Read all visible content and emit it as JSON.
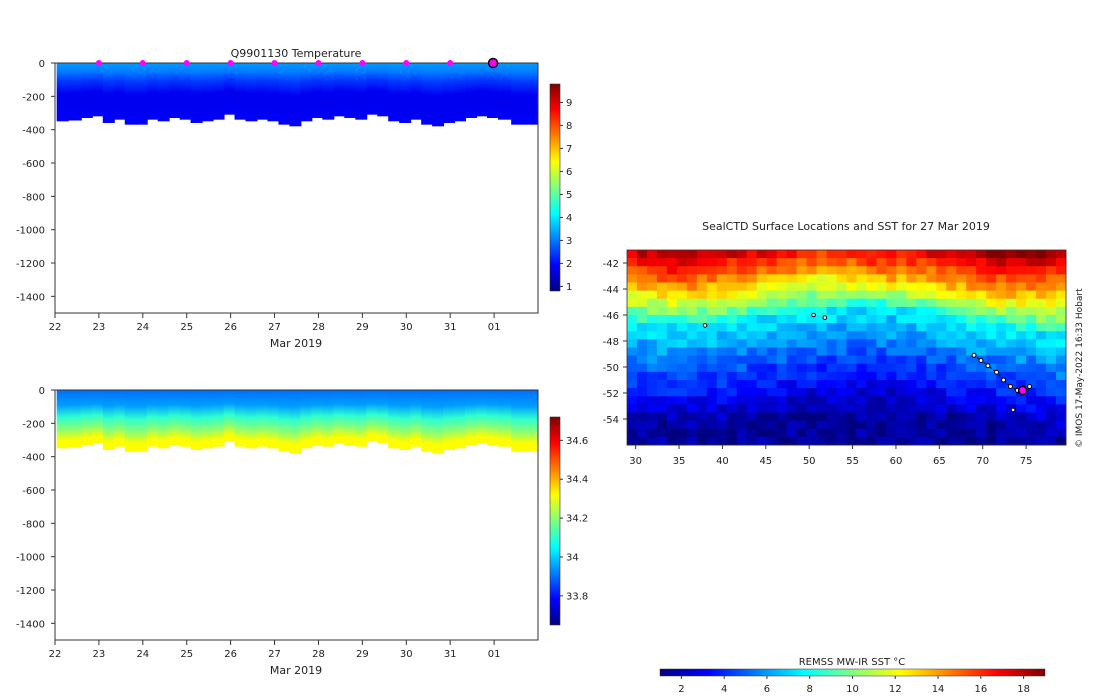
{
  "colors": {
    "jet": [
      "#00007f",
      "#0000ff",
      "#007fff",
      "#00ffff",
      "#7fff7f",
      "#ffff00",
      "#ff7f00",
      "#ff0000",
      "#7f0000"
    ],
    "profile_stops": [
      "#0a1f8f",
      "#1540c8",
      "#1e6fe0",
      "#23b2e8",
      "#17d0c0",
      "#2ec84e",
      "#8fdc1a",
      "#e0d020"
    ],
    "marker": "#ff00ff",
    "track": "#000000"
  },
  "chart_data": [
    {
      "id": "temperature",
      "type": "heatmap",
      "title": "Q9901130  Temperature",
      "xlabel": "Mar 2019",
      "ylabel": "",
      "x_ticks": [
        "22",
        "23",
        "24",
        "25",
        "26",
        "27",
        "28",
        "29",
        "30",
        "31",
        "01"
      ],
      "x_range": [
        22,
        33
      ],
      "y_ticks": [
        "0",
        "-200",
        "-400",
        "-600",
        "-800",
        "-1000",
        "-1200",
        "-1400"
      ],
      "y_range": [
        -1500,
        0
      ],
      "colorbar": {
        "ticks": [
          "1",
          "2",
          "3",
          "4",
          "5",
          "6",
          "7",
          "8",
          "9"
        ],
        "range": [
          0.8,
          9.8
        ]
      },
      "surface_markers_day": [
        23,
        24,
        25,
        26,
        27,
        28,
        29,
        30,
        31
      ],
      "last_marker_day": 32,
      "profile_days": [
        22.05,
        22.3,
        22.6,
        22.85,
        23.1,
        23.35,
        23.6,
        23.85,
        24.1,
        24.35,
        24.6,
        24.85,
        25.1,
        25.35,
        25.6,
        25.85,
        26.1,
        26.35,
        26.6,
        26.85,
        27.1,
        27.35,
        27.6,
        27.85,
        28.1,
        28.35,
        28.6,
        28.85,
        29.1,
        29.35,
        29.6,
        29.85,
        30.1,
        30.35,
        30.6,
        30.85,
        31.1,
        31.35,
        31.6,
        31.85,
        32.1,
        32.4
      ],
      "profile_depth_m": [
        350,
        345,
        330,
        320,
        360,
        340,
        370,
        370,
        340,
        350,
        330,
        340,
        360,
        350,
        340,
        310,
        340,
        350,
        340,
        350,
        370,
        380,
        350,
        330,
        340,
        320,
        330,
        340,
        310,
        320,
        350,
        360,
        340,
        370,
        380,
        360,
        350,
        330,
        320,
        330,
        340,
        370
      ],
      "water_column_values": [
        {
          "depth": 0,
          "value": 3.3
        },
        {
          "depth": -60,
          "value": 3.0
        },
        {
          "depth": -120,
          "value": 2.4
        },
        {
          "depth": -200,
          "value": 1.8
        },
        {
          "depth": -300,
          "value": 1.8
        },
        {
          "depth": -380,
          "value": 1.9
        }
      ]
    },
    {
      "id": "salinity",
      "type": "heatmap",
      "title": "",
      "xlabel": "Mar 2019",
      "ylabel": "",
      "x_ticks": [
        "22",
        "23",
        "24",
        "25",
        "26",
        "27",
        "28",
        "29",
        "30",
        "31",
        "01"
      ],
      "x_range": [
        22,
        33
      ],
      "y_ticks": [
        "0",
        "-200",
        "-400",
        "-600",
        "-800",
        "-1000",
        "-1200",
        "-1400"
      ],
      "y_range": [
        -1500,
        0
      ],
      "colorbar": {
        "ticks": [
          "33.8",
          "34",
          "34.2",
          "34.4",
          "34.6"
        ],
        "range": [
          33.65,
          34.72
        ]
      },
      "water_column_values": [
        {
          "depth": 0,
          "value": 33.9
        },
        {
          "depth": -100,
          "value": 33.95
        },
        {
          "depth": -180,
          "value": 34.1
        },
        {
          "depth": -260,
          "value": 34.2
        },
        {
          "depth": -330,
          "value": 34.32
        }
      ]
    },
    {
      "id": "sst_map",
      "type": "heatmap",
      "title": "SealCTD Surface Locations and SST for 27 Mar 2019",
      "xlabel": "",
      "ylabel": "",
      "x_ticks": [
        "30",
        "35",
        "40",
        "45",
        "50",
        "55",
        "60",
        "65",
        "70",
        "75"
      ],
      "x_range": [
        29,
        79.6
      ],
      "y_ticks": [
        "-42",
        "-44",
        "-46",
        "-48",
        "-50",
        "-52",
        "-54"
      ],
      "y_range": [
        -56,
        -41
      ],
      "sst_front_lat": [
        -46.5,
        -46.8,
        -46.6,
        -45.8,
        -45.6,
        -45.2,
        -45.7,
        -46.5,
        -47.0,
        -47.6
      ],
      "sst_warm_lat": [
        -43.5,
        -44.0,
        -43.5,
        -43.0,
        -42.2,
        -43.0,
        -43.0,
        -43.8,
        -44.2,
        -44.0
      ],
      "track": {
        "lon": [
          69.0,
          69.8,
          70.6,
          71.6,
          72.4,
          73.2,
          74.0,
          74.6,
          75.4
        ],
        "lat": [
          -49.1,
          -49.5,
          -49.9,
          -50.4,
          -51.0,
          -51.5,
          -51.8,
          -51.9,
          -51.5
        ]
      },
      "current_position": {
        "lon": 74.6,
        "lat": -51.8
      },
      "other_tags": [
        {
          "lon": 38.0,
          "lat": -46.8
        },
        {
          "lon": 50.5,
          "lat": -46.0
        },
        {
          "lon": 51.8,
          "lat": -46.2
        },
        {
          "lon": 73.5,
          "lat": -53.3
        }
      ],
      "side_label": "© IMOS 17-May-2022 16:33 Hobart",
      "colorbar": {
        "title": "REMSS MW-IR SST °C",
        "ticks": [
          "2",
          "4",
          "6",
          "8",
          "10",
          "12",
          "14",
          "16",
          "18"
        ],
        "range": [
          1,
          19
        ]
      }
    }
  ]
}
